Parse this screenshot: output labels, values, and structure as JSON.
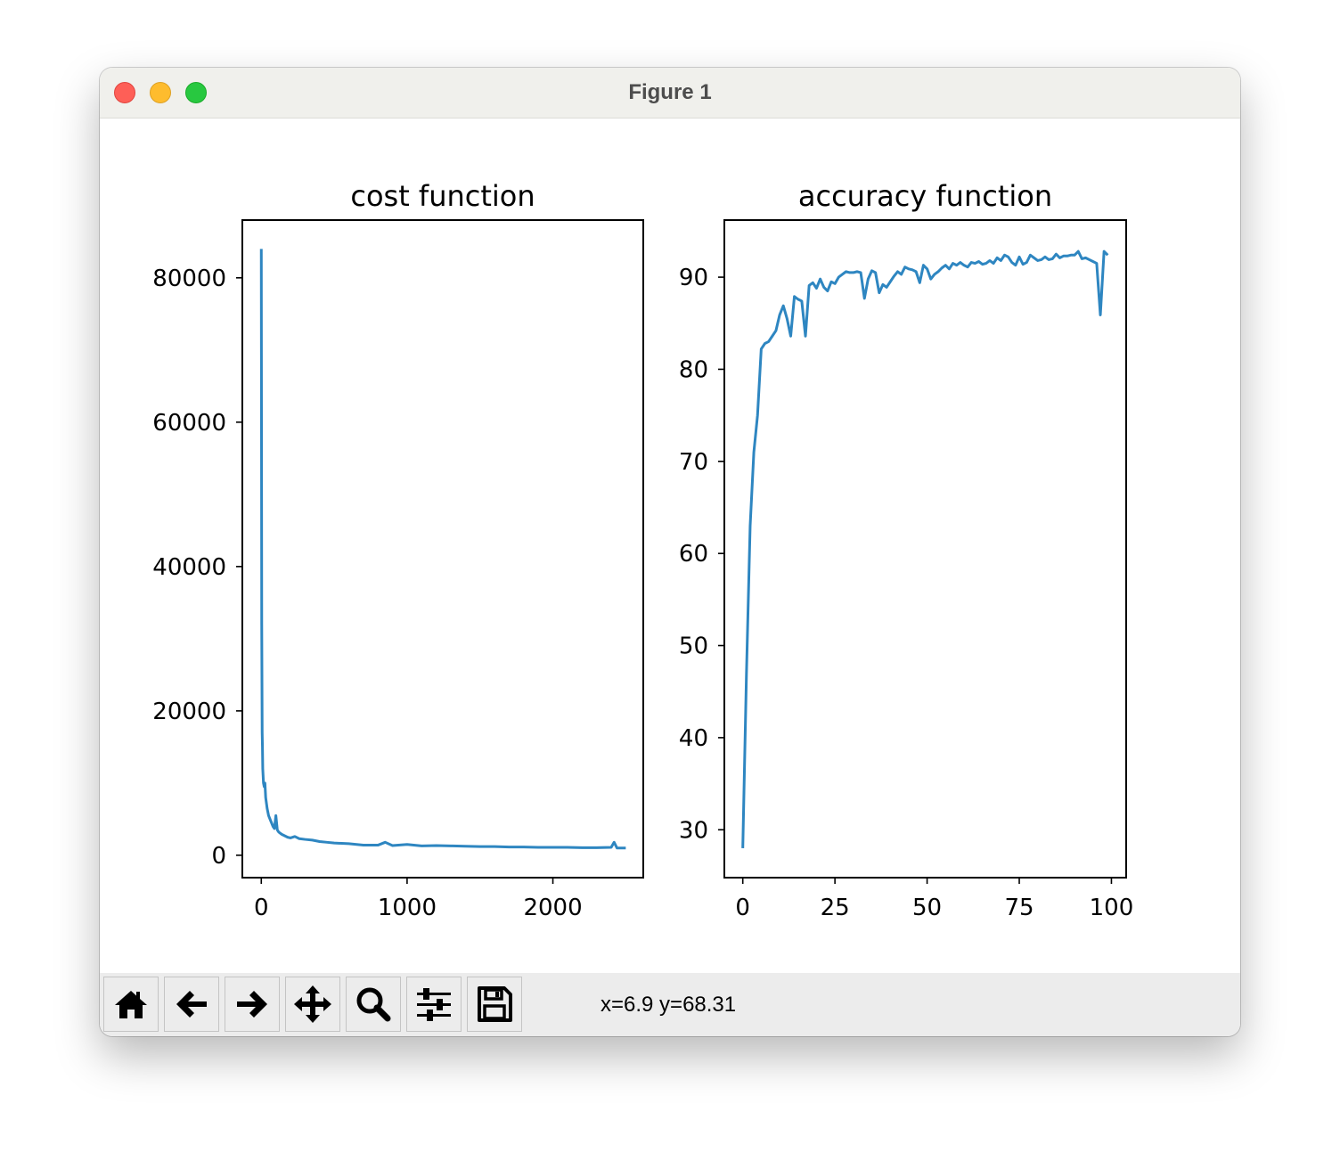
{
  "window": {
    "title": "Figure 1"
  },
  "toolbar": {
    "buttons": [
      {
        "name": "home-button",
        "icon": "home-icon"
      },
      {
        "name": "back-button",
        "icon": "arrow-left-icon"
      },
      {
        "name": "forward-button",
        "icon": "arrow-right-icon"
      },
      {
        "name": "pan-button",
        "icon": "move-icon"
      },
      {
        "name": "zoom-button",
        "icon": "magnifier-icon"
      },
      {
        "name": "configure-subplots-button",
        "icon": "sliders-icon"
      },
      {
        "name": "save-button",
        "icon": "floppy-disk-icon"
      }
    ],
    "coordinates": "x=6.9 y=68.31"
  },
  "colors": {
    "line": "#2e86c1",
    "titlebar": "#f0f0ec",
    "toolbar": "#ececec"
  },
  "chart_data": [
    {
      "type": "line",
      "title": "cost function",
      "xlabel": "",
      "ylabel": "",
      "xlim": [
        -130,
        2620
      ],
      "ylim": [
        -3100,
        88000
      ],
      "xticks": [
        0,
        1000,
        2000
      ],
      "xtick_labels": [
        "0",
        "1000",
        "2000"
      ],
      "yticks": [
        0,
        20000,
        40000,
        60000,
        80000
      ],
      "ytick_labels": [
        "0",
        "20000",
        "40000",
        "60000",
        "80000"
      ],
      "grid": false,
      "series": [
        {
          "x": [
            0,
            3,
            6,
            8,
            10,
            15,
            20,
            25,
            30,
            40,
            50,
            60,
            70,
            80,
            90,
            100,
            110,
            120,
            140,
            160,
            180,
            200,
            230,
            260,
            300,
            350,
            400,
            450,
            500,
            600,
            700,
            800,
            850,
            900,
            1000,
            1100,
            1200,
            1300,
            1400,
            1500,
            1600,
            1700,
            1800,
            1900,
            2000,
            2100,
            2200,
            2300,
            2400,
            2420,
            2440,
            2500
          ],
          "y": [
            84000,
            32000,
            17000,
            15000,
            12000,
            10000,
            9500,
            10000,
            8000,
            6500,
            5500,
            5000,
            4500,
            4000,
            3700,
            5500,
            3500,
            3200,
            2900,
            2700,
            2500,
            2400,
            2600,
            2300,
            2200,
            2100,
            1900,
            1800,
            1700,
            1600,
            1400,
            1400,
            1800,
            1350,
            1500,
            1300,
            1350,
            1300,
            1250,
            1200,
            1200,
            1150,
            1150,
            1100,
            1100,
            1100,
            1050,
            1050,
            1100,
            1800,
            1000,
            1000
          ]
        }
      ]
    },
    {
      "type": "line",
      "title": "accuracy function",
      "xlabel": "",
      "ylabel": "",
      "xlim": [
        -5,
        104
      ],
      "ylim": [
        24.8,
        96.2
      ],
      "xticks": [
        0,
        25,
        50,
        75,
        100
      ],
      "xtick_labels": [
        "0",
        "25",
        "50",
        "75",
        "100"
      ],
      "yticks": [
        30,
        40,
        50,
        60,
        70,
        80,
        90
      ],
      "ytick_labels": [
        "30",
        "40",
        "50",
        "60",
        "70",
        "80",
        "90"
      ],
      "grid": false,
      "series": [
        {
          "x": [
            0,
            1,
            2,
            3,
            4,
            5,
            6,
            7,
            8,
            9,
            10,
            11,
            12,
            13,
            14,
            15,
            16,
            17,
            18,
            19,
            20,
            21,
            22,
            23,
            24,
            25,
            26,
            27,
            28,
            29,
            30,
            31,
            32,
            33,
            34,
            35,
            36,
            37,
            38,
            39,
            40,
            41,
            42,
            43,
            44,
            45,
            46,
            47,
            48,
            49,
            50,
            51,
            52,
            53,
            54,
            55,
            56,
            57,
            58,
            59,
            60,
            61,
            62,
            63,
            64,
            65,
            66,
            67,
            68,
            69,
            70,
            71,
            72,
            73,
            74,
            75,
            76,
            77,
            78,
            79,
            80,
            81,
            82,
            83,
            84,
            85,
            86,
            87,
            88,
            89,
            90,
            91,
            92,
            93,
            94,
            95,
            96,
            97,
            98,
            99
          ],
          "y": [
            28,
            47,
            63,
            71,
            75,
            82.2,
            82.8,
            83,
            83.6,
            84.2,
            85.9,
            86.9,
            85.5,
            83.6,
            87.9,
            87.6,
            87.4,
            83.6,
            89.1,
            89.4,
            88.8,
            89.8,
            88.9,
            88.5,
            89.5,
            89.3,
            90,
            90.3,
            90.6,
            90.5,
            90.5,
            90.6,
            90.5,
            87.7,
            89.8,
            90.7,
            90.5,
            88.3,
            89.2,
            88.9,
            89.5,
            90.1,
            90.6,
            90.3,
            91.1,
            90.9,
            90.8,
            90.6,
            89.4,
            91.3,
            90.9,
            89.8,
            90.3,
            90.6,
            91,
            91.3,
            90.9,
            91.5,
            91.3,
            91.6,
            91.3,
            91.1,
            91.6,
            91.5,
            91.7,
            91.4,
            91.5,
            91.8,
            91.5,
            92.1,
            91.8,
            92.4,
            92.2,
            91.6,
            91.3,
            92.2,
            91.4,
            91.6,
            92.4,
            92.1,
            91.8,
            91.9,
            92.2,
            91.9,
            92,
            92.5,
            92.1,
            92.3,
            92.3,
            92.4,
            92.4,
            92.8,
            92,
            92.1,
            91.9,
            91.7,
            91.5,
            85.9,
            92.8,
            92.4
          ]
        }
      ]
    }
  ]
}
